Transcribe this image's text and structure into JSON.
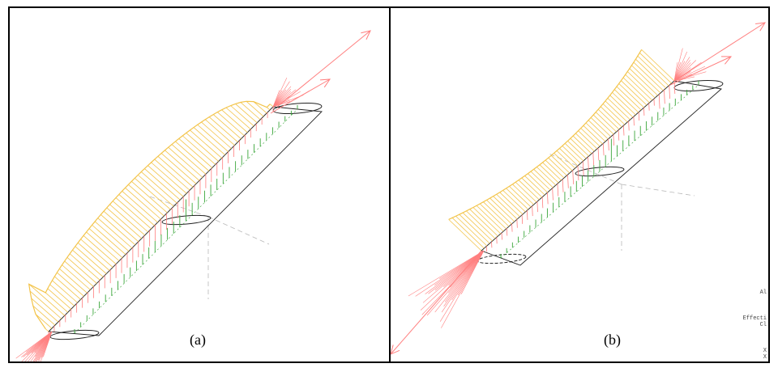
{
  "figure": {
    "panels": [
      {
        "id": "a",
        "caption": "(a)"
      },
      {
        "id": "b",
        "caption": "(b)"
      }
    ],
    "colors": {
      "lift_curve": "#f3c44a",
      "vortex_red": "#ff7f7f",
      "down_green": "#3aa63a",
      "wing_outline": "#222222",
      "axis_gray": "#b9b9b9"
    },
    "side_text": [
      "Al",
      "Effecti",
      "Cl",
      "X",
      "X"
    ]
  }
}
